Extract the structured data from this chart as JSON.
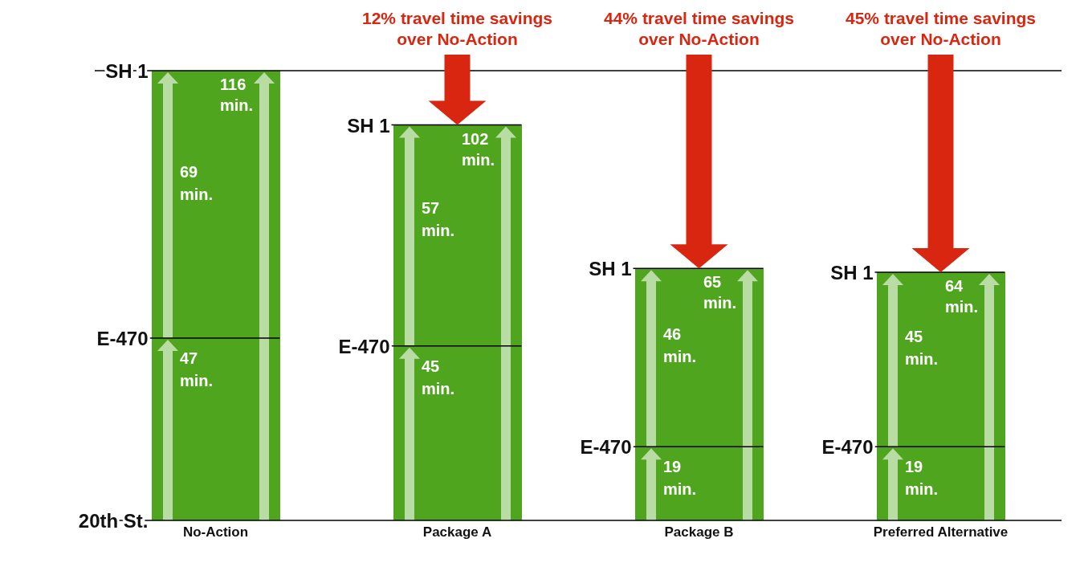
{
  "chart_data": {
    "type": "bar",
    "stacked": true,
    "categories": [
      "No-Action",
      "Package A",
      "Package B",
      "Preferred Alternative"
    ],
    "series": [
      {
        "color": "#4fa51e",
        "values": [
          47,
          45,
          19,
          19
        ],
        "value_labels": [
          "47 min.",
          "45 min.",
          "19 min.",
          "19 min."
        ]
      },
      {
        "color": "#4fa51e",
        "values": [
          69,
          57,
          46,
          45
        ],
        "value_labels": [
          "69 min.",
          "57 min.",
          "46 min.",
          "45 min."
        ]
      }
    ],
    "totals": [
      "116 min.",
      "102 min.",
      "65 min.",
      "64 min."
    ],
    "ref_lines": [
      {
        "axis": "y",
        "value": 116,
        "color": "#000000"
      }
    ],
    "annotations": [
      "20th St.",
      "E-470",
      "SH 1",
      "E-470",
      "SH 1",
      "E-470",
      "SH 1",
      "E-470",
      "SH 1",
      "12% travel time savings over No-Action",
      "44% travel time savings over No-Action",
      "45% travel time savings over No-Action"
    ]
  }
}
